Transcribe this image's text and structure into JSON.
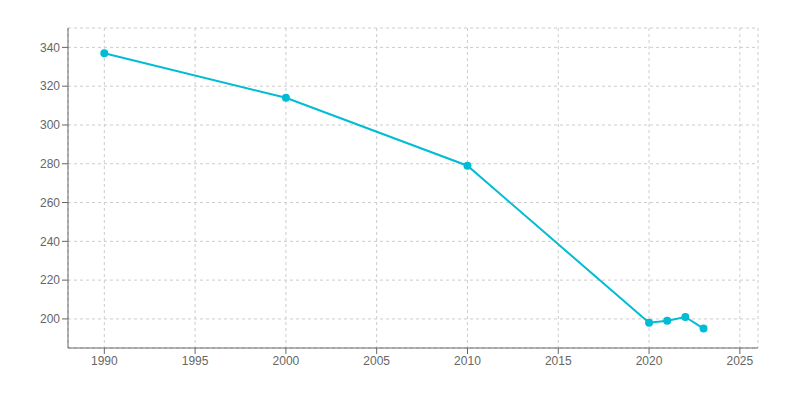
{
  "chart_data": {
    "type": "line",
    "x": [
      1990,
      2000,
      2010,
      2020,
      2021,
      2022,
      2023
    ],
    "values": [
      337,
      314,
      279,
      198,
      199,
      201,
      195
    ],
    "color": "#00bcd4",
    "marker": "circle",
    "xlim": [
      1988,
      2026
    ],
    "ylim": [
      185,
      350
    ],
    "xticks": [
      1990,
      1995,
      2000,
      2005,
      2010,
      2015,
      2020,
      2025
    ],
    "yticks": [
      200,
      220,
      240,
      260,
      280,
      300,
      320,
      340
    ],
    "grid": true
  }
}
